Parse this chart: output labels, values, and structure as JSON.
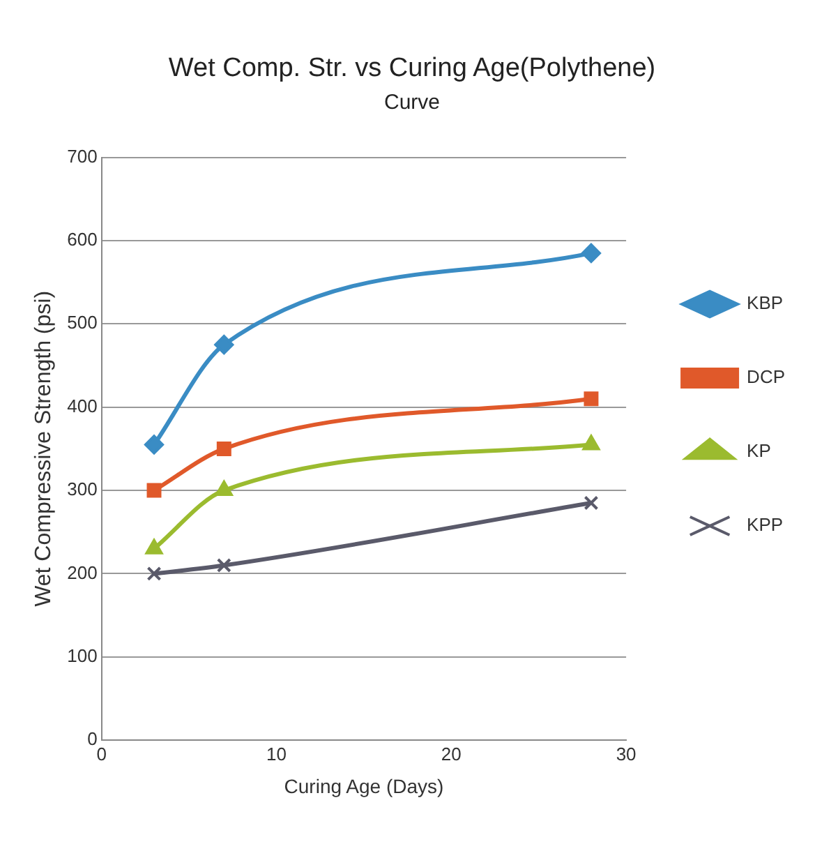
{
  "chart_data": {
    "type": "line",
    "title": "Wet Comp. Str. vs Curing Age(Polythene)",
    "subtitle": "Curve",
    "xlabel": "Curing Age (Days)",
    "ylabel": "Wet Compressive Strength (psi)",
    "x": [
      3,
      7,
      28
    ],
    "xlim": [
      0,
      30
    ],
    "xticks": [
      0,
      10,
      20,
      30
    ],
    "ylim": [
      0,
      700
    ],
    "yticks": [
      0,
      100,
      200,
      300,
      400,
      500,
      600,
      700
    ],
    "grid": "y",
    "legend": "right",
    "series": [
      {
        "name": "KBP",
        "color": "#3a8cc4",
        "marker": "diamond",
        "values": [
          355,
          475,
          585
        ]
      },
      {
        "name": "DCP",
        "color": "#e0592a",
        "marker": "square",
        "values": [
          300,
          350,
          410
        ]
      },
      {
        "name": "KP",
        "color": "#9bbb2f",
        "marker": "triangle",
        "values": [
          230,
          300,
          355
        ]
      },
      {
        "name": "KPP",
        "color": "#5a5a6a",
        "marker": "cross",
        "values": [
          200,
          210,
          285
        ]
      }
    ]
  }
}
